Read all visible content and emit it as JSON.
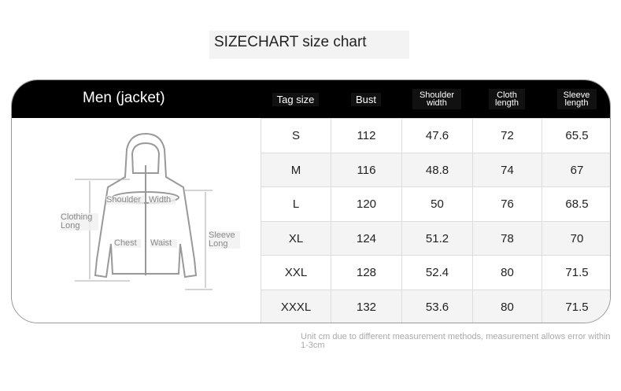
{
  "title": "SIZECHART size chart",
  "table": {
    "section_label": "Men (jacket)",
    "headers": [
      "Tag size",
      "Bust",
      "Shoulder width",
      "Cloth length",
      "Sleeve length"
    ],
    "rows": [
      [
        "S",
        "112",
        "47.6",
        "72",
        "65.5"
      ],
      [
        "M",
        "116",
        "48.8",
        "74",
        "67"
      ],
      [
        "L",
        "120",
        "50",
        "76",
        "68.5"
      ],
      [
        "XL",
        "124",
        "51.2",
        "78",
        "70"
      ],
      [
        "XXL",
        "128",
        "52.4",
        "80",
        "71.5"
      ],
      [
        "XXXL",
        "132",
        "53.6",
        "80",
        "71.5"
      ]
    ]
  },
  "diagram": {
    "shoulder": "Shoulder",
    "width": "Width",
    "clothing_long": "Clothing Long",
    "chest": "Chest",
    "waist": "Waist",
    "sleeve_long": "Sleeve Long"
  },
  "note": "Unit cm due to different measurement methods, measurement allows error within 1-3cm",
  "colors": {
    "header": "#000000",
    "row_alt": "#f4f4f4"
  }
}
